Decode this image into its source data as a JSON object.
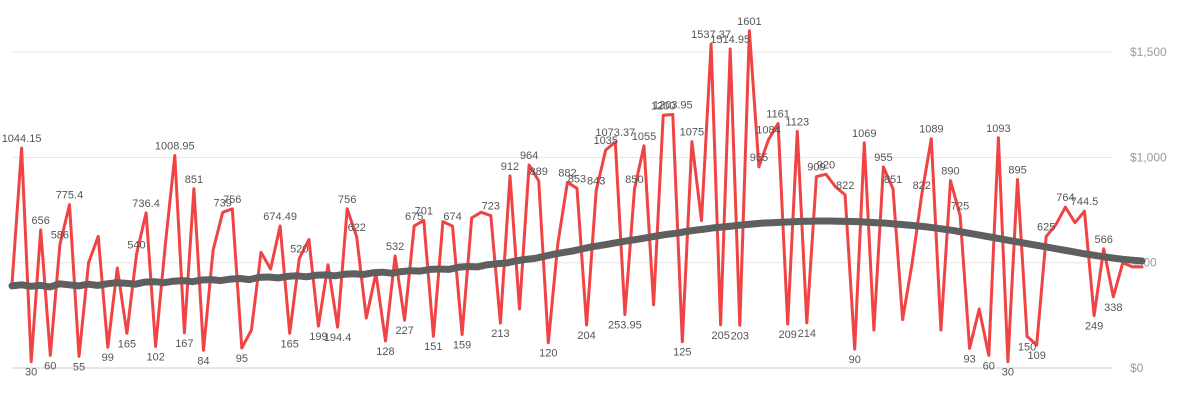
{
  "chart_data": {
    "type": "line",
    "title": "",
    "xlabel": "",
    "ylabel": "",
    "ylim": [
      0,
      1700
    ],
    "y_axis_position": "right",
    "grid": true,
    "legend": "none",
    "y_ticks": [
      {
        "value": 0,
        "label": "$0"
      },
      {
        "value": 500,
        "label": "$500"
      },
      {
        "value": 1000,
        "label": "$1,000"
      },
      {
        "value": 1500,
        "label": "$1,500"
      }
    ],
    "series": [
      {
        "color": "#f04444",
        "values": [
          400,
          1044.15,
          30,
          656,
          60,
          586,
          775.4,
          55,
          500,
          625,
          99,
          475,
          165,
          540,
          736.4,
          102,
          580,
          1008.95,
          167,
          851,
          84,
          560,
          739,
          756,
          95,
          180,
          550,
          470,
          674.49,
          165,
          520,
          610,
          199,
          490,
          194.4,
          756,
          622,
          237,
          450,
          128,
          532,
          227,
          675,
          701,
          151,
          695,
          674,
          159,
          713,
          740,
          723,
          213,
          912,
          280,
          964,
          889,
          120,
          590,
          882,
          853,
          204,
          843,
          1035,
          1073.37,
          253.95,
          850,
          1055,
          300,
          1200,
          1203.95,
          125,
          1075,
          700,
          1537.37,
          205,
          1514.95,
          203,
          1601,
          955,
          1084,
          1161,
          209,
          1123,
          214,
          909,
          920,
          860,
          822,
          90,
          1069,
          180,
          955,
          851,
          230,
          500,
          822,
          1089,
          180,
          890,
          725,
          93,
          280,
          60,
          1093,
          30,
          895,
          150,
          109,
          625,
          680,
          764,
          690,
          744.5,
          249,
          566,
          338,
          500,
          480,
          480
        ],
        "labels": [
          "",
          "1044.15",
          "30",
          "656",
          "60",
          "586",
          "775.4",
          "55",
          "",
          "",
          "99",
          "",
          "165",
          "540",
          "736.4",
          "102",
          "",
          "1008.95",
          "167",
          "851",
          "84",
          "",
          "739",
          "756",
          "95",
          "",
          "",
          "",
          "674.49",
          "165",
          "520",
          "",
          "199",
          "",
          "194.4",
          "756",
          "622",
          "",
          "",
          "128",
          "532",
          "227",
          "675",
          "701",
          "151",
          "",
          "674",
          "159",
          "",
          "",
          "723",
          "213",
          "912",
          "",
          "964",
          "889",
          "120",
          "",
          "882",
          "853",
          "204",
          "843",
          "1035",
          "1073.37",
          "253.95",
          "850",
          "1055",
          "",
          "1200",
          "1203.95",
          "125",
          "1075",
          "",
          "1537.37",
          "205",
          "1514.95",
          "203",
          "1601",
          "955",
          "1084",
          "1161",
          "209",
          "1123",
          "214",
          "909",
          "920",
          "",
          "822",
          "90",
          "1069",
          "",
          "955",
          "851",
          "",
          "",
          "822",
          "1089",
          "",
          "890",
          "725",
          "93",
          "",
          "60",
          "1093",
          "30",
          "895",
          "150",
          "109",
          "625",
          "",
          "764",
          "",
          "744.5",
          "249",
          "566",
          "338",
          "",
          "",
          ""
        ]
      },
      {
        "color": "#5f5f5f",
        "values": [
          390,
          395,
          388,
          392,
          385,
          400,
          395,
          390,
          398,
          392,
          400,
          405,
          402,
          398,
          408,
          410,
          405,
          412,
          415,
          410,
          418,
          420,
          415,
          422,
          425,
          420,
          430,
          432,
          428,
          435,
          438,
          433,
          440,
          442,
          438,
          445,
          448,
          444,
          452,
          455,
          450,
          458,
          462,
          460,
          468,
          470,
          468,
          478,
          482,
          480,
          490,
          495,
          498,
          508,
          515,
          520,
          530,
          540,
          548,
          555,
          565,
          575,
          582,
          590,
          598,
          605,
          612,
          620,
          628,
          635,
          640,
          648,
          655,
          660,
          666,
          670,
          675,
          680,
          684,
          688,
          690,
          692,
          694,
          696,
          697,
          698,
          698,
          697,
          696,
          695,
          693,
          690,
          688,
          684,
          680,
          676,
          672,
          666,
          660,
          654,
          646,
          638,
          630,
          622,
          614,
          606,
          598,
          590,
          582,
          574,
          566,
          558,
          550,
          542,
          535,
          528,
          522,
          516,
          512,
          508
        ]
      }
    ],
    "annotations": [
      "30",
      "60",
      "$0"
    ]
  }
}
